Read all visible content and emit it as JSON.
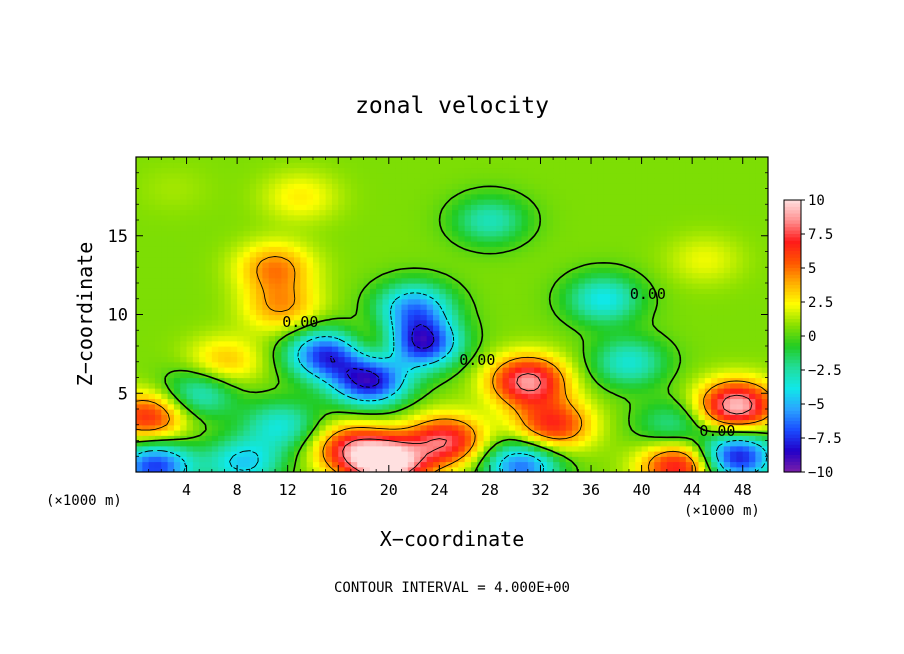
{
  "chart_data": {
    "type": "heatmap",
    "title": "zonal velocity",
    "xlabel": "X−coordinate",
    "ylabel": "Z−coordinate",
    "x_unit_left": "(×1000 m)",
    "x_unit_right": "(×1000 m)",
    "footer": "CONTOUR INTERVAL = 4.000E+00",
    "xlim": [
      0,
      50
    ],
    "ylim": [
      0,
      20
    ],
    "x_ticks": [
      4,
      8,
      12,
      16,
      20,
      24,
      28,
      32,
      36,
      40,
      44,
      48
    ],
    "x_tick_labels": [
      "4",
      "8",
      "12",
      "16",
      "20",
      "24",
      "28",
      "32",
      "36",
      "40",
      "44",
      "48"
    ],
    "y_ticks": [
      5,
      10,
      15
    ],
    "y_tick_labels": [
      "5",
      "10",
      "15"
    ],
    "colorbar": {
      "min": -10,
      "max": 10,
      "ticks": [
        10,
        7.5,
        5,
        2.5,
        0,
        -2.5,
        -5,
        -7.5,
        -10
      ],
      "tick_labels": [
        "10",
        "7.5",
        "5",
        "2.5",
        "0",
        "−2.5",
        "−5",
        "−7.5",
        "−10"
      ],
      "colors": [
        "#7a1fa8",
        "#2200c8",
        "#1a4cff",
        "#2aa5ff",
        "#10e8e8",
        "#22dd99",
        "#22cc22",
        "#88e000",
        "#ffff00",
        "#ffb000",
        "#ff5500",
        "#ff1a1a",
        "#ff9090",
        "#ffe0e0"
      ]
    },
    "contour_labels": [
      {
        "x": 13.0,
        "y": 9.2,
        "text": "0.00"
      },
      {
        "x": 27.0,
        "y": 6.8,
        "text": "0.00"
      },
      {
        "x": 40.5,
        "y": 11.0,
        "text": "0.00"
      },
      {
        "x": 46.0,
        "y": 2.3,
        "text": "0.00"
      }
    ],
    "features": [
      {
        "x": 1.0,
        "z": 3.5,
        "v": 6
      },
      {
        "x": 1.5,
        "z": 0.4,
        "v": -8
      },
      {
        "x": 5.0,
        "z": 5.0,
        "v": -4
      },
      {
        "x": 7.0,
        "z": 7.0,
        "v": 3
      },
      {
        "x": 8.5,
        "z": 0.6,
        "v": -5
      },
      {
        "x": 11.0,
        "z": 13.0,
        "v": 4
      },
      {
        "x": 11.5,
        "z": 10.5,
        "v": 3.5
      },
      {
        "x": 13.0,
        "z": 17.5,
        "v": 2
      },
      {
        "x": 11.5,
        "z": 3.0,
        "v": -4
      },
      {
        "x": 15.0,
        "z": 7.5,
        "v": -8
      },
      {
        "x": 18.5,
        "z": 5.8,
        "v": -9
      },
      {
        "x": 19.5,
        "z": 8.0,
        "v": 3
      },
      {
        "x": 22.5,
        "z": 8.2,
        "v": -9.5
      },
      {
        "x": 22.0,
        "z": 10.5,
        "v": -6
      },
      {
        "x": 20.0,
        "z": 0.6,
        "v": 10
      },
      {
        "x": 24.5,
        "z": 2.0,
        "v": 7
      },
      {
        "x": 17.0,
        "z": 1.5,
        "v": 6
      },
      {
        "x": 28.0,
        "z": 16.0,
        "v": -3.5
      },
      {
        "x": 31.0,
        "z": 5.8,
        "v": 8
      },
      {
        "x": 33.0,
        "z": 3.0,
        "v": 6
      },
      {
        "x": 30.5,
        "z": 0.4,
        "v": -7
      },
      {
        "x": 37.0,
        "z": 11.0,
        "v": -4.5
      },
      {
        "x": 39.0,
        "z": 7.0,
        "v": -4
      },
      {
        "x": 42.5,
        "z": 3.0,
        "v": -3
      },
      {
        "x": 43.0,
        "z": 0.4,
        "v": 7
      },
      {
        "x": 47.5,
        "z": 4.2,
        "v": 9
      },
      {
        "x": 47.5,
        "z": 1.0,
        "v": -9
      },
      {
        "x": 45.0,
        "z": 13.5,
        "v": 1.5
      },
      {
        "x": 3.0,
        "z": 18.0,
        "v": 0.5
      }
    ]
  }
}
